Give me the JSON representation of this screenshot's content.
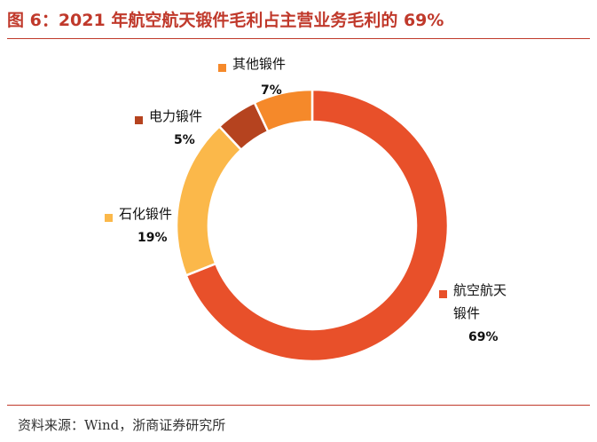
{
  "figure": {
    "title": "图 6：2021 年航空航天锻件毛利占主营业务毛利的 69%",
    "source": "资料来源：Wind，浙商证券研究所"
  },
  "chart_data": {
    "type": "pie",
    "variant": "donut",
    "title": "图 6：2021 年航空航天锻件毛利占主营业务毛利的 69%",
    "unit": "%",
    "slices": [
      {
        "name": "航空航天锻件",
        "value": 69,
        "label": "69%",
        "color": "#e8502a"
      },
      {
        "name": "石化锻件",
        "value": 19,
        "label": "19%",
        "color": "#fbb84a"
      },
      {
        "name": "电力锻件",
        "value": 5,
        "label": "5%",
        "color": "#b5431f"
      },
      {
        "name": "其他锻件",
        "value": 7,
        "label": "7%",
        "color": "#f5892a"
      }
    ],
    "legend": "labels-outside"
  }
}
